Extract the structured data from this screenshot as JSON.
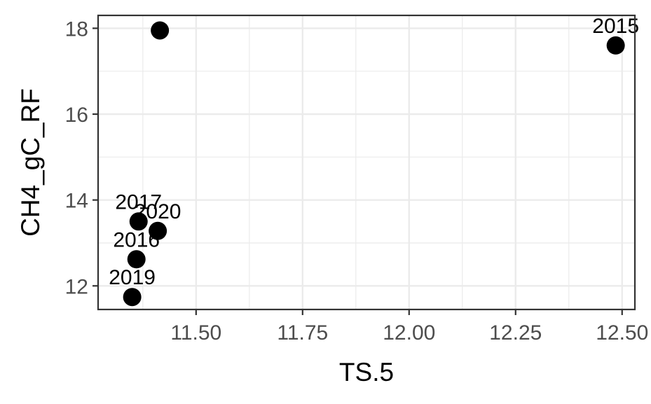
{
  "chart_data": {
    "type": "scatter",
    "xlabel": "TS.5",
    "ylabel": "CH4_gC_RF",
    "xlim": [
      11.27,
      12.53
    ],
    "ylim": [
      11.45,
      18.3
    ],
    "x_ticks": [
      11.5,
      11.75,
      12.0,
      12.25,
      12.5
    ],
    "x_tick_labels": [
      "11.50",
      "11.75",
      "12.00",
      "12.25",
      "12.50"
    ],
    "y_ticks": [
      12,
      14,
      16,
      18
    ],
    "y_tick_labels": [
      "12",
      "14",
      "16",
      "18"
    ],
    "grid": true,
    "points": [
      {
        "x": 11.415,
        "y": 17.95,
        "label": ""
      },
      {
        "x": 12.485,
        "y": 17.6,
        "label": "2015"
      },
      {
        "x": 11.365,
        "y": 13.5,
        "label": "2017"
      },
      {
        "x": 11.41,
        "y": 13.28,
        "label": "2020"
      },
      {
        "x": 11.36,
        "y": 12.62,
        "label": "2016"
      },
      {
        "x": 11.35,
        "y": 11.74,
        "label": "2019"
      }
    ],
    "colors": {
      "point": "#000000",
      "grid": "#ebebeb",
      "panel_border": "#333333",
      "tick_text": "#4d4d4d"
    }
  }
}
